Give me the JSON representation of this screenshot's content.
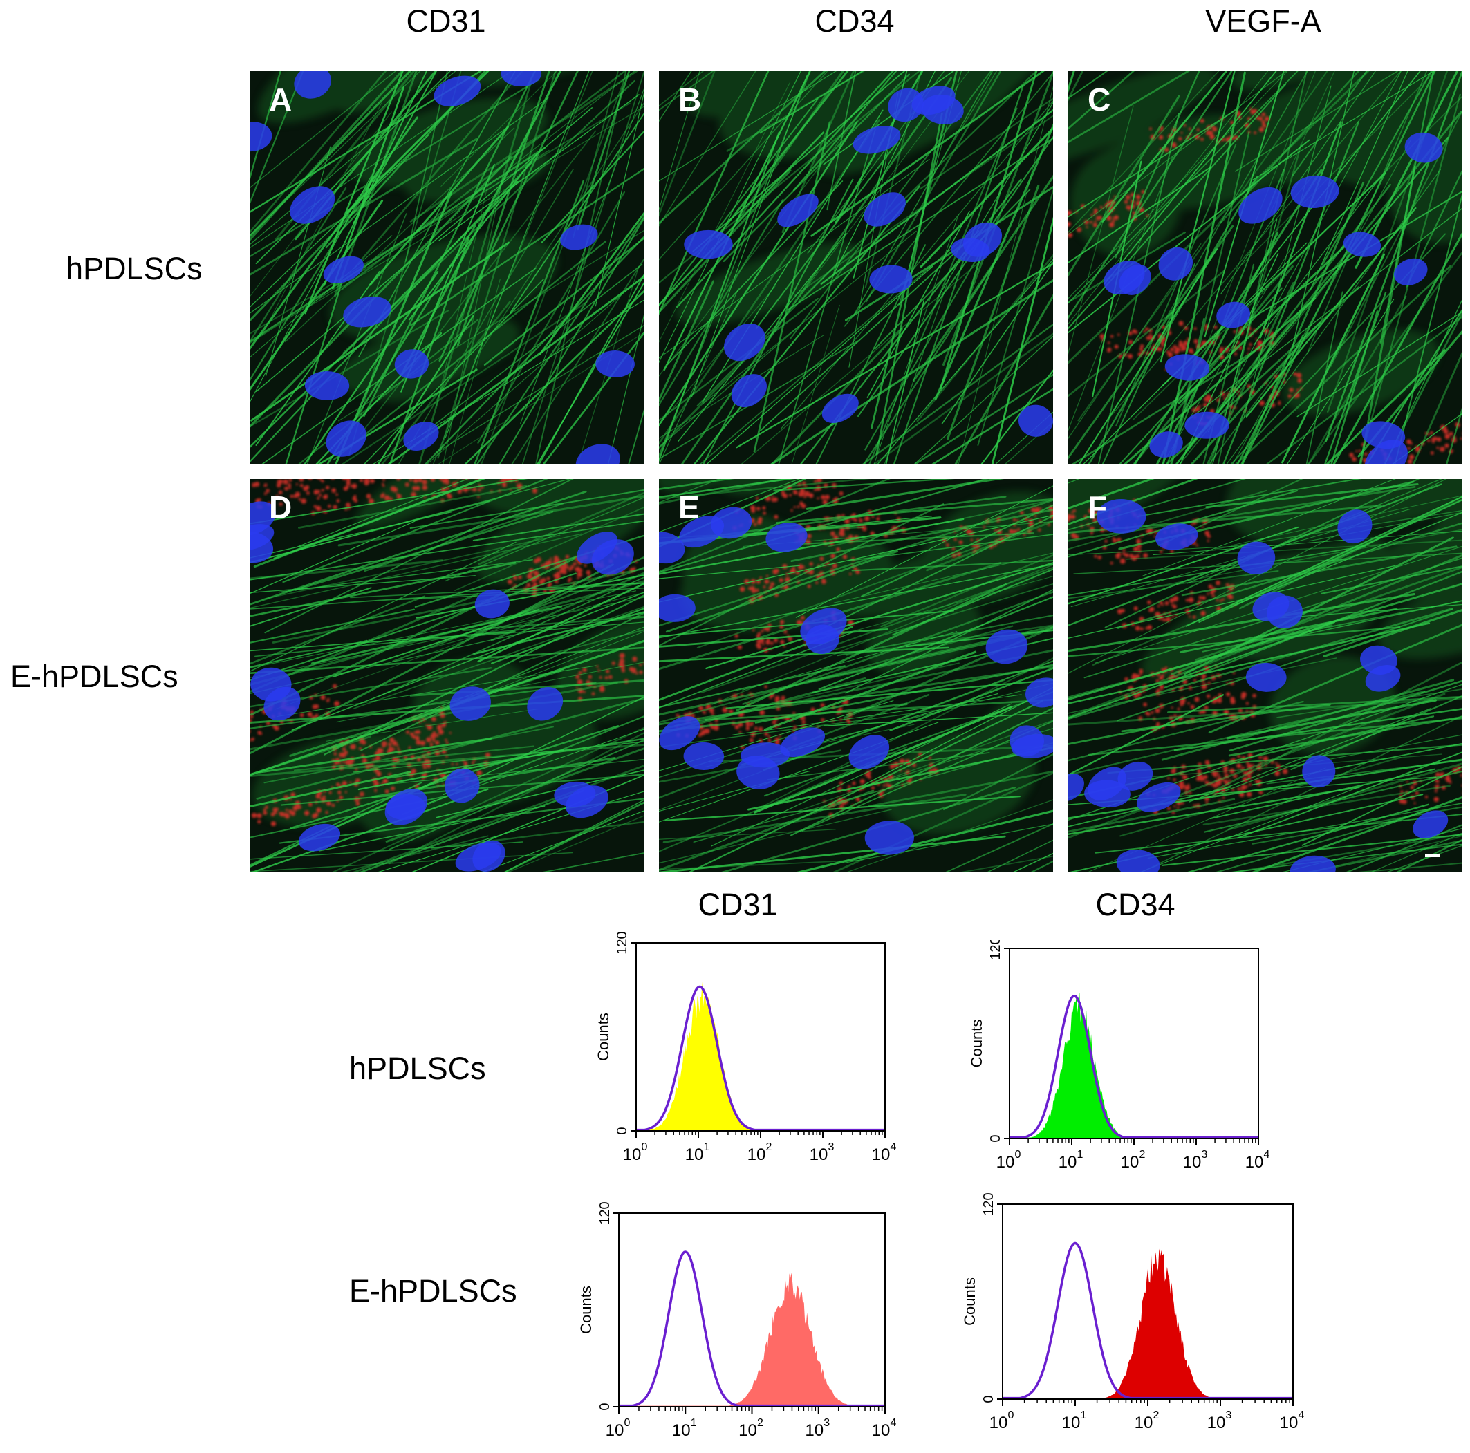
{
  "micro": {
    "columns": [
      "CD31",
      "CD34",
      "VEGF-A"
    ],
    "rows": [
      "hPDLSCs",
      "E-hPDLSCs"
    ],
    "panel_labels": [
      "A",
      "B",
      "C",
      "D",
      "E",
      "F"
    ],
    "colors": {
      "actin": "#2fcf4a",
      "nuclei": "#2a3cf0",
      "marker": "#e0302a"
    }
  },
  "flow": {
    "columns": [
      "CD31",
      "CD34"
    ],
    "rows": [
      "hPDLSCs",
      "E-hPDLSCs"
    ]
  },
  "chart_data": [
    {
      "type": "area",
      "row": "hPDLSCs",
      "marker": "CD31",
      "ylabel": "Counts",
      "xscale": "log",
      "xlim": [
        1,
        10000
      ],
      "ylim": [
        0,
        120
      ],
      "yticks": [
        "0",
        "120"
      ],
      "series": [
        {
          "style": "outline",
          "color": "#6a1fd0",
          "peak_x": 10.5,
          "peak_y": 92,
          "width_decades": 0.28
        },
        {
          "style": "filled",
          "color": "#ffff00",
          "peak_x": 11.5,
          "peak_y": 85,
          "width_decades": 0.27
        }
      ]
    },
    {
      "type": "area",
      "row": "hPDLSCs",
      "marker": "CD34",
      "ylabel": "Counts",
      "xscale": "log",
      "xlim": [
        1,
        10000
      ],
      "ylim": [
        0,
        120
      ],
      "yticks": [
        "0",
        "120"
      ],
      "series": [
        {
          "style": "outline",
          "color": "#6a1fd0",
          "peak_x": 11,
          "peak_y": 90,
          "width_decades": 0.26
        },
        {
          "style": "filled",
          "color": "#00ee00",
          "peak_x": 13,
          "peak_y": 83,
          "width_decades": 0.25
        }
      ]
    },
    {
      "type": "area",
      "row": "E-hPDLSCs",
      "marker": "CD31",
      "ylabel": "Counts",
      "xscale": "log",
      "xlim": [
        1,
        10000
      ],
      "ylim": [
        0,
        120
      ],
      "yticks": [
        "0",
        "120"
      ],
      "series": [
        {
          "style": "outline",
          "color": "#6a1fd0",
          "peak_x": 10,
          "peak_y": 96,
          "width_decades": 0.25
        },
        {
          "style": "filled",
          "color": "#ff6a66",
          "peak_x": 380,
          "peak_y": 77,
          "width_decades": 0.3
        }
      ]
    },
    {
      "type": "area",
      "row": "E-hPDLSCs",
      "marker": "CD34",
      "ylabel": "Counts",
      "xscale": "log",
      "xlim": [
        1,
        10000
      ],
      "ylim": [
        0,
        120
      ],
      "yticks": [
        "0",
        "120"
      ],
      "series": [
        {
          "style": "outline",
          "color": "#6a1fd0",
          "peak_x": 10,
          "peak_y": 96,
          "width_decades": 0.24
        },
        {
          "style": "filled",
          "color": "#dd0000",
          "peak_x": 140,
          "peak_y": 88,
          "width_decades": 0.24
        }
      ]
    }
  ]
}
